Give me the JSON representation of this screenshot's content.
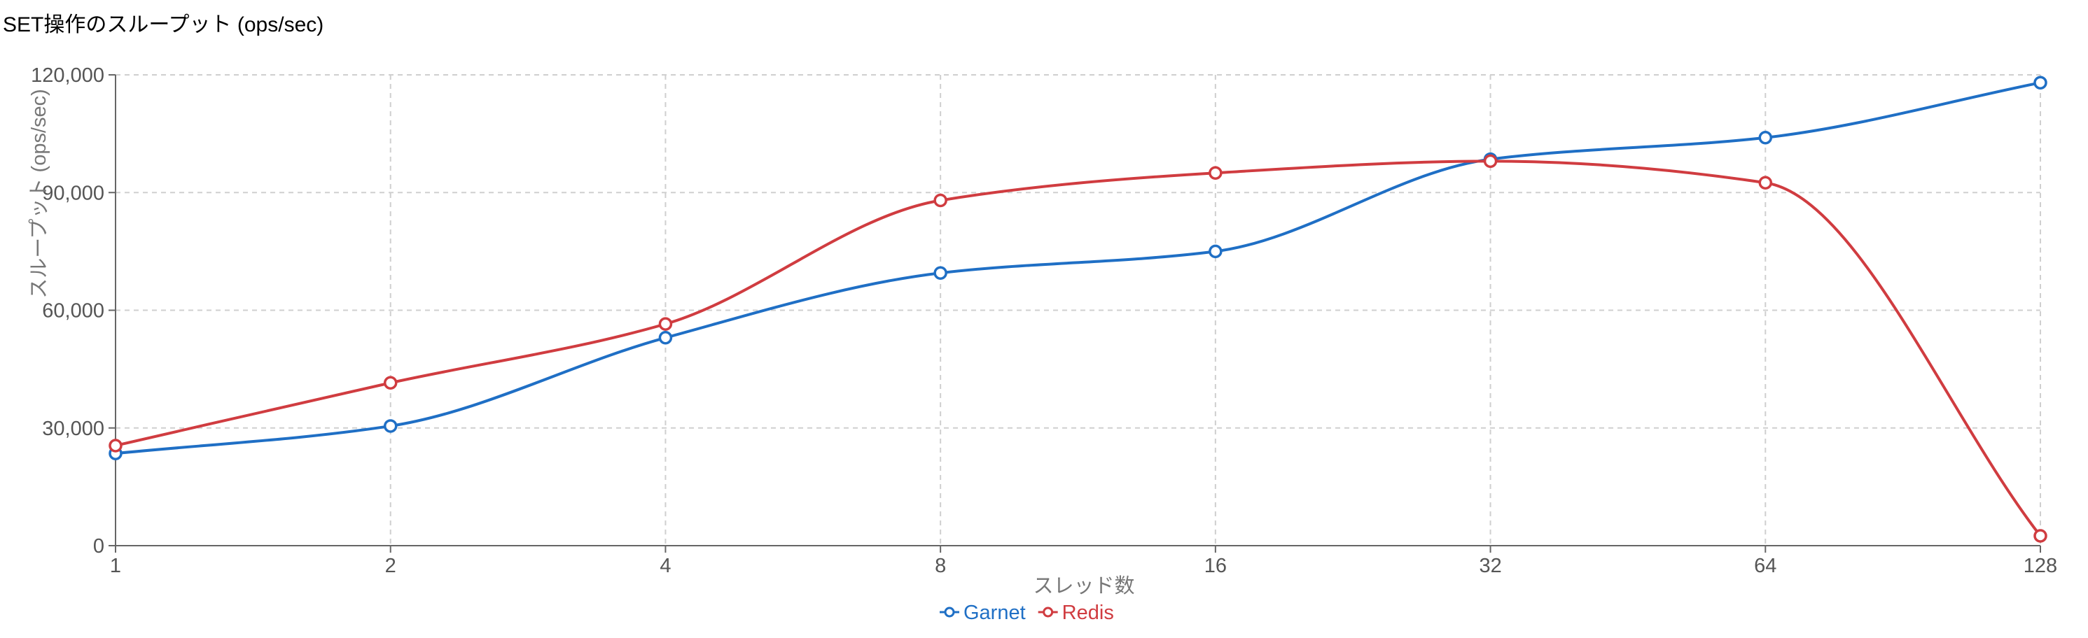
{
  "chart_data": {
    "type": "line",
    "title": "SET操作のスループット (ops/sec)",
    "xlabel": "スレッド数",
    "ylabel": "スループット (ops/sec)",
    "x": [
      1,
      2,
      4,
      8,
      16,
      32,
      64,
      128
    ],
    "x_tick_labels": [
      "1",
      "2",
      "4",
      "8",
      "16",
      "32",
      "64",
      "128"
    ],
    "ylim": [
      0,
      120000
    ],
    "y_ticks": [
      0,
      30000,
      60000,
      90000,
      120000
    ],
    "y_tick_labels": [
      "0",
      "30,000",
      "60,000",
      "90,000",
      "120,000"
    ],
    "grid": true,
    "legend_position": "bottom-center",
    "series": [
      {
        "name": "Garnet",
        "color": "#1f6fc5",
        "values": [
          23500,
          30500,
          53000,
          69500,
          75000,
          98500,
          104000,
          118000
        ]
      },
      {
        "name": "Redis",
        "color": "#d03c40",
        "values": [
          25500,
          41500,
          56500,
          88000,
          95000,
          98000,
          92500,
          2500
        ]
      }
    ]
  }
}
